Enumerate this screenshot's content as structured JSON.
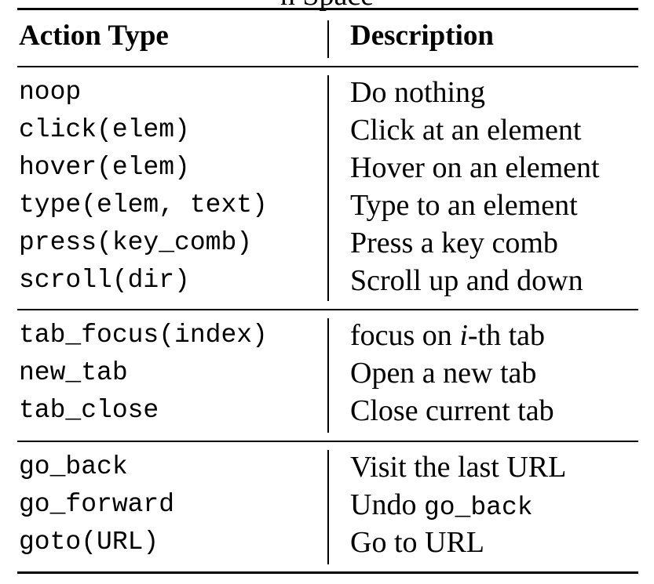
{
  "caption_fragment": "n Space",
  "header": {
    "action_type": "Action Type",
    "description": "Description"
  },
  "groups": [
    {
      "rows": [
        {
          "action": "noop",
          "description": "Do nothing"
        },
        {
          "action": "click(elem)",
          "description": "Click at an element"
        },
        {
          "action": "hover(elem)",
          "description": "Hover on an element"
        },
        {
          "action": "type(elem, text)",
          "description": "Type to an element"
        },
        {
          "action": "press(key_comb)",
          "description": "Press a key comb"
        },
        {
          "action": "scroll(dir)",
          "description": "Scroll up and down"
        }
      ]
    },
    {
      "rows": [
        {
          "action": "tab_focus(index)",
          "description_prefix": "focus on ",
          "description_math": "i",
          "description_suffix": "-th tab"
        },
        {
          "action": "new_tab",
          "description": "Open a new tab"
        },
        {
          "action": "tab_close",
          "description": "Close current tab"
        }
      ]
    },
    {
      "rows": [
        {
          "action": "go_back",
          "description": "Visit the last URL"
        },
        {
          "action": "go_forward",
          "description_prefix": "Undo ",
          "description_code": "go_back"
        },
        {
          "action": "goto(URL)",
          "description": "Go to URL"
        }
      ]
    }
  ]
}
